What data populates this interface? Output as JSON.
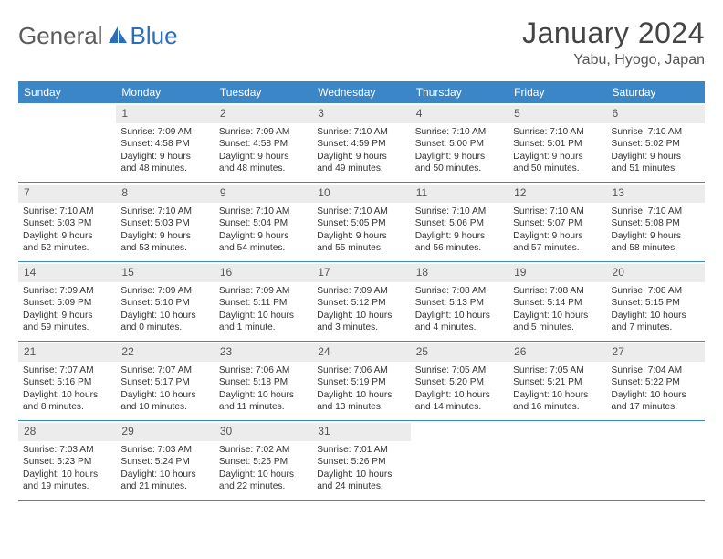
{
  "brand": {
    "part1": "General",
    "part2": "Blue"
  },
  "title": "January 2024",
  "location": "Yabu, Hyogo, Japan",
  "colors": {
    "header_bar": "#3b86c7",
    "rule": "#3b86c7",
    "daynum_bg": "#ececec",
    "logo_blue": "#2a6db8"
  },
  "dow": [
    "Sunday",
    "Monday",
    "Tuesday",
    "Wednesday",
    "Thursday",
    "Friday",
    "Saturday"
  ],
  "weeks": [
    [
      {
        "n": "",
        "sr": "",
        "ss": "",
        "d1": "",
        "d2": ""
      },
      {
        "n": "1",
        "sr": "Sunrise: 7:09 AM",
        "ss": "Sunset: 4:58 PM",
        "d1": "Daylight: 9 hours",
        "d2": "and 48 minutes."
      },
      {
        "n": "2",
        "sr": "Sunrise: 7:09 AM",
        "ss": "Sunset: 4:58 PM",
        "d1": "Daylight: 9 hours",
        "d2": "and 48 minutes."
      },
      {
        "n": "3",
        "sr": "Sunrise: 7:10 AM",
        "ss": "Sunset: 4:59 PM",
        "d1": "Daylight: 9 hours",
        "d2": "and 49 minutes."
      },
      {
        "n": "4",
        "sr": "Sunrise: 7:10 AM",
        "ss": "Sunset: 5:00 PM",
        "d1": "Daylight: 9 hours",
        "d2": "and 50 minutes."
      },
      {
        "n": "5",
        "sr": "Sunrise: 7:10 AM",
        "ss": "Sunset: 5:01 PM",
        "d1": "Daylight: 9 hours",
        "d2": "and 50 minutes."
      },
      {
        "n": "6",
        "sr": "Sunrise: 7:10 AM",
        "ss": "Sunset: 5:02 PM",
        "d1": "Daylight: 9 hours",
        "d2": "and 51 minutes."
      }
    ],
    [
      {
        "n": "7",
        "sr": "Sunrise: 7:10 AM",
        "ss": "Sunset: 5:03 PM",
        "d1": "Daylight: 9 hours",
        "d2": "and 52 minutes."
      },
      {
        "n": "8",
        "sr": "Sunrise: 7:10 AM",
        "ss": "Sunset: 5:03 PM",
        "d1": "Daylight: 9 hours",
        "d2": "and 53 minutes."
      },
      {
        "n": "9",
        "sr": "Sunrise: 7:10 AM",
        "ss": "Sunset: 5:04 PM",
        "d1": "Daylight: 9 hours",
        "d2": "and 54 minutes."
      },
      {
        "n": "10",
        "sr": "Sunrise: 7:10 AM",
        "ss": "Sunset: 5:05 PM",
        "d1": "Daylight: 9 hours",
        "d2": "and 55 minutes."
      },
      {
        "n": "11",
        "sr": "Sunrise: 7:10 AM",
        "ss": "Sunset: 5:06 PM",
        "d1": "Daylight: 9 hours",
        "d2": "and 56 minutes."
      },
      {
        "n": "12",
        "sr": "Sunrise: 7:10 AM",
        "ss": "Sunset: 5:07 PM",
        "d1": "Daylight: 9 hours",
        "d2": "and 57 minutes."
      },
      {
        "n": "13",
        "sr": "Sunrise: 7:10 AM",
        "ss": "Sunset: 5:08 PM",
        "d1": "Daylight: 9 hours",
        "d2": "and 58 minutes."
      }
    ],
    [
      {
        "n": "14",
        "sr": "Sunrise: 7:09 AM",
        "ss": "Sunset: 5:09 PM",
        "d1": "Daylight: 9 hours",
        "d2": "and 59 minutes."
      },
      {
        "n": "15",
        "sr": "Sunrise: 7:09 AM",
        "ss": "Sunset: 5:10 PM",
        "d1": "Daylight: 10 hours",
        "d2": "and 0 minutes."
      },
      {
        "n": "16",
        "sr": "Sunrise: 7:09 AM",
        "ss": "Sunset: 5:11 PM",
        "d1": "Daylight: 10 hours",
        "d2": "and 1 minute."
      },
      {
        "n": "17",
        "sr": "Sunrise: 7:09 AM",
        "ss": "Sunset: 5:12 PM",
        "d1": "Daylight: 10 hours",
        "d2": "and 3 minutes."
      },
      {
        "n": "18",
        "sr": "Sunrise: 7:08 AM",
        "ss": "Sunset: 5:13 PM",
        "d1": "Daylight: 10 hours",
        "d2": "and 4 minutes."
      },
      {
        "n": "19",
        "sr": "Sunrise: 7:08 AM",
        "ss": "Sunset: 5:14 PM",
        "d1": "Daylight: 10 hours",
        "d2": "and 5 minutes."
      },
      {
        "n": "20",
        "sr": "Sunrise: 7:08 AM",
        "ss": "Sunset: 5:15 PM",
        "d1": "Daylight: 10 hours",
        "d2": "and 7 minutes."
      }
    ],
    [
      {
        "n": "21",
        "sr": "Sunrise: 7:07 AM",
        "ss": "Sunset: 5:16 PM",
        "d1": "Daylight: 10 hours",
        "d2": "and 8 minutes."
      },
      {
        "n": "22",
        "sr": "Sunrise: 7:07 AM",
        "ss": "Sunset: 5:17 PM",
        "d1": "Daylight: 10 hours",
        "d2": "and 10 minutes."
      },
      {
        "n": "23",
        "sr": "Sunrise: 7:06 AM",
        "ss": "Sunset: 5:18 PM",
        "d1": "Daylight: 10 hours",
        "d2": "and 11 minutes."
      },
      {
        "n": "24",
        "sr": "Sunrise: 7:06 AM",
        "ss": "Sunset: 5:19 PM",
        "d1": "Daylight: 10 hours",
        "d2": "and 13 minutes."
      },
      {
        "n": "25",
        "sr": "Sunrise: 7:05 AM",
        "ss": "Sunset: 5:20 PM",
        "d1": "Daylight: 10 hours",
        "d2": "and 14 minutes."
      },
      {
        "n": "26",
        "sr": "Sunrise: 7:05 AM",
        "ss": "Sunset: 5:21 PM",
        "d1": "Daylight: 10 hours",
        "d2": "and 16 minutes."
      },
      {
        "n": "27",
        "sr": "Sunrise: 7:04 AM",
        "ss": "Sunset: 5:22 PM",
        "d1": "Daylight: 10 hours",
        "d2": "and 17 minutes."
      }
    ],
    [
      {
        "n": "28",
        "sr": "Sunrise: 7:03 AM",
        "ss": "Sunset: 5:23 PM",
        "d1": "Daylight: 10 hours",
        "d2": "and 19 minutes."
      },
      {
        "n": "29",
        "sr": "Sunrise: 7:03 AM",
        "ss": "Sunset: 5:24 PM",
        "d1": "Daylight: 10 hours",
        "d2": "and 21 minutes."
      },
      {
        "n": "30",
        "sr": "Sunrise: 7:02 AM",
        "ss": "Sunset: 5:25 PM",
        "d1": "Daylight: 10 hours",
        "d2": "and 22 minutes."
      },
      {
        "n": "31",
        "sr": "Sunrise: 7:01 AM",
        "ss": "Sunset: 5:26 PM",
        "d1": "Daylight: 10 hours",
        "d2": "and 24 minutes."
      },
      {
        "n": "",
        "sr": "",
        "ss": "",
        "d1": "",
        "d2": ""
      },
      {
        "n": "",
        "sr": "",
        "ss": "",
        "d1": "",
        "d2": ""
      },
      {
        "n": "",
        "sr": "",
        "ss": "",
        "d1": "",
        "d2": ""
      }
    ]
  ]
}
